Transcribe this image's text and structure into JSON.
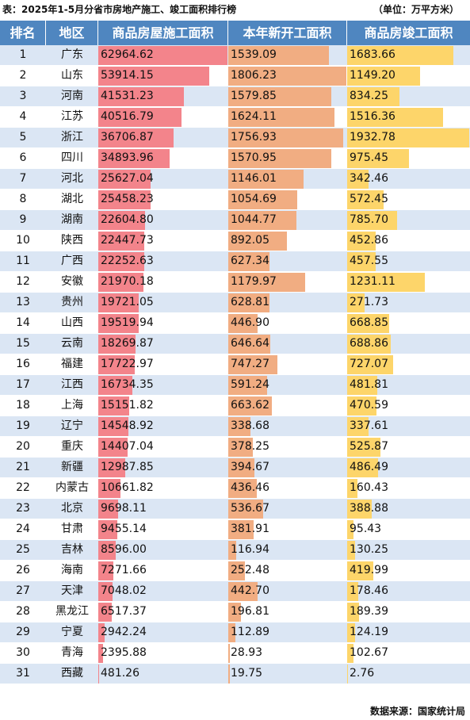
{
  "title": "表：2025年1-5月分省市房地产施工、竣工面积排行榜",
  "unit": "（单位：万平方米）",
  "source": "数据来源：国家统计局",
  "columns": [
    "排名",
    "地区",
    "商品房屋施工面积",
    "本年新开工面积",
    "商品房竣工面积"
  ],
  "colors": {
    "header": "#4f86c0",
    "stripe": "#dbe6f4",
    "construction": "#f3848b",
    "new_starts": "#f1ad82",
    "completed": "#fdd56a"
  },
  "chart_data": {
    "type": "table",
    "columns": [
      "排名",
      "地区",
      "商品房屋施工面积",
      "本年新开工面积",
      "商品房竣工面积"
    ],
    "rows": [
      {
        "rank": "1",
        "region": "广东",
        "construction": 62964.62,
        "new_starts": 1539.09,
        "completed": 1683.66
      },
      {
        "rank": "2",
        "region": "山东",
        "construction": 53914.15,
        "new_starts": 1806.23,
        "completed": 1149.2
      },
      {
        "rank": "3",
        "region": "河南",
        "construction": 41531.23,
        "new_starts": 1579.85,
        "completed": 834.25
      },
      {
        "rank": "4",
        "region": "江苏",
        "construction": 40516.79,
        "new_starts": 1624.11,
        "completed": 1516.36
      },
      {
        "rank": "5",
        "region": "浙江",
        "construction": 36706.87,
        "new_starts": 1756.93,
        "completed": 1932.78
      },
      {
        "rank": "6",
        "region": "四川",
        "construction": 34893.96,
        "new_starts": 1570.95,
        "completed": 975.45
      },
      {
        "rank": "7",
        "region": "河北",
        "construction": 25627.04,
        "new_starts": 1146.01,
        "completed": 342.46
      },
      {
        "rank": "8",
        "region": "湖北",
        "construction": 25458.23,
        "new_starts": 1054.69,
        "completed": 572.45
      },
      {
        "rank": "9",
        "region": "湖南",
        "construction": 22604.8,
        "new_starts": 1044.77,
        "completed": 785.7
      },
      {
        "rank": "10",
        "region": "陕西",
        "construction": 22447.73,
        "new_starts": 892.05,
        "completed": 452.86
      },
      {
        "rank": "11",
        "region": "广西",
        "construction": 22252.63,
        "new_starts": 627.34,
        "completed": 457.55
      },
      {
        "rank": "12",
        "region": "安徽",
        "construction": 21970.18,
        "new_starts": 1179.97,
        "completed": 1231.11
      },
      {
        "rank": "13",
        "region": "贵州",
        "construction": 19721.05,
        "new_starts": 628.81,
        "completed": 271.73
      },
      {
        "rank": "14",
        "region": "山西",
        "construction": 19519.94,
        "new_starts": 446.9,
        "completed": 668.85
      },
      {
        "rank": "15",
        "region": "云南",
        "construction": 18269.87,
        "new_starts": 646.64,
        "completed": 688.86
      },
      {
        "rank": "16",
        "region": "福建",
        "construction": 17722.97,
        "new_starts": 747.27,
        "completed": 727.07
      },
      {
        "rank": "17",
        "region": "江西",
        "construction": 16734.35,
        "new_starts": 591.24,
        "completed": 481.81
      },
      {
        "rank": "18",
        "region": "上海",
        "construction": 15151.82,
        "new_starts": 663.62,
        "completed": 470.59
      },
      {
        "rank": "19",
        "region": "辽宁",
        "construction": 14548.92,
        "new_starts": 338.68,
        "completed": 337.61
      },
      {
        "rank": "20",
        "region": "重庆",
        "construction": 14407.04,
        "new_starts": 378.25,
        "completed": 525.87
      },
      {
        "rank": "21",
        "region": "新疆",
        "construction": 12987.85,
        "new_starts": 394.67,
        "completed": 486.49
      },
      {
        "rank": "22",
        "region": "内蒙古",
        "construction": 10661.82,
        "new_starts": 436.46,
        "completed": 160.43
      },
      {
        "rank": "23",
        "region": "北京",
        "construction": 9698.11,
        "new_starts": 536.67,
        "completed": 388.88
      },
      {
        "rank": "24",
        "region": "甘肃",
        "construction": 9455.14,
        "new_starts": 381.91,
        "completed": 95.43
      },
      {
        "rank": "25",
        "region": "吉林",
        "construction": 8596.0,
        "new_starts": 116.94,
        "completed": 130.25
      },
      {
        "rank": "26",
        "region": "海南",
        "construction": 7271.66,
        "new_starts": 252.48,
        "completed": 419.99
      },
      {
        "rank": "27",
        "region": "天津",
        "construction": 7048.02,
        "new_starts": 442.7,
        "completed": 178.46
      },
      {
        "rank": "28",
        "region": "黑龙江",
        "construction": 6517.37,
        "new_starts": 196.81,
        "completed": 189.39
      },
      {
        "rank": "29",
        "region": "宁夏",
        "construction": 2942.24,
        "new_starts": 112.89,
        "completed": 124.19
      },
      {
        "rank": "30",
        "region": "青海",
        "construction": 2395.88,
        "new_starts": 28.93,
        "completed": 102.67
      },
      {
        "rank": "31",
        "region": "西藏",
        "construction": 481.26,
        "new_starts": 19.75,
        "completed": 2.76
      }
    ]
  }
}
